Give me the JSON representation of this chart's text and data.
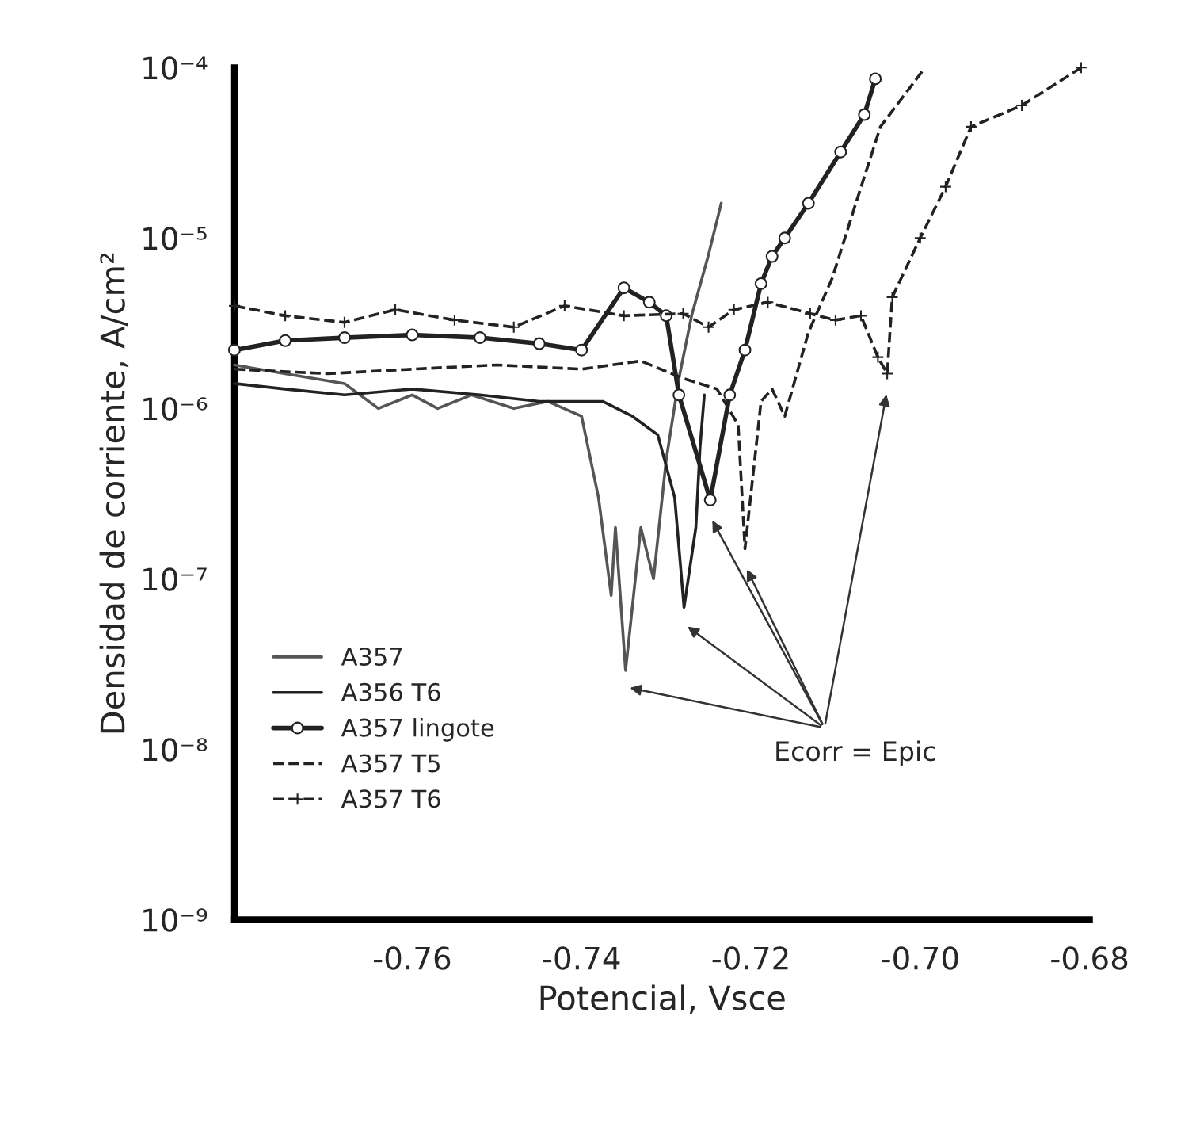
{
  "chart_data": {
    "type": "line",
    "xlabel": "Potencial, Vsce",
    "ylabel": "Densidad de corriente, A/cm²",
    "log": "y",
    "xlim": [
      -0.781,
      -0.68
    ],
    "xticks": [
      {
        "value": -0.76,
        "label": "-0.76"
      },
      {
        "value": -0.74,
        "label": "-0.74"
      },
      {
        "value": -0.72,
        "label": "-0.72"
      },
      {
        "value": -0.7,
        "label": "-0.70"
      },
      {
        "value": -0.68,
        "label": "-0.68"
      }
    ],
    "ylim": [
      1e-09,
      0.0001
    ],
    "yticks": [
      {
        "value": 1e-09,
        "label": "10⁻⁹"
      },
      {
        "value": 1e-08,
        "label": "10⁻⁸"
      },
      {
        "value": 1e-07,
        "label": "10⁻⁷"
      },
      {
        "value": 1e-06,
        "label": "10⁻⁶"
      },
      {
        "value": 1e-05,
        "label": "10⁻⁵"
      },
      {
        "value": 0.0001,
        "label": "10⁻⁴"
      }
    ],
    "grid": false,
    "legend": "bottom left",
    "annotations": [
      "Ecorr = Epic"
    ],
    "series": [
      {
        "name": "A357",
        "color": "#555555",
        "line_style": "solid",
        "marker": "none",
        "x": [
          -0.781,
          -0.775,
          -0.768,
          -0.764,
          -0.76,
          -0.757,
          -0.753,
          -0.748,
          -0.744,
          -0.74,
          -0.738,
          -0.7365,
          -0.736,
          -0.7348,
          -0.733,
          -0.7315,
          -0.73,
          -0.7285,
          -0.727,
          -0.725,
          -0.7235
        ],
        "values": [
          1.8e-06,
          1.6e-06,
          1.4e-06,
          1e-06,
          1.2e-06,
          1e-06,
          1.2e-06,
          1e-06,
          1.1e-06,
          9e-07,
          3e-07,
          8e-08,
          2e-07,
          2.9e-08,
          2e-07,
          1e-07,
          5e-07,
          1.5e-06,
          3.5e-06,
          8e-06,
          1.6e-05
        ]
      },
      {
        "name": "A356 T6",
        "color": "#222222",
        "line_style": "solid",
        "marker": "none",
        "x": [
          -0.781,
          -0.775,
          -0.768,
          -0.76,
          -0.752,
          -0.745,
          -0.7375,
          -0.734,
          -0.731,
          -0.729,
          -0.7279,
          -0.7265,
          -0.726,
          -0.7255
        ],
        "values": [
          1.4e-06,
          1.3e-06,
          1.2e-06,
          1.3e-06,
          1.2e-06,
          1.1e-06,
          1.1e-06,
          9e-07,
          7e-07,
          3e-07,
          6.8e-08,
          2e-07,
          6e-07,
          1.2e-06
        ]
      },
      {
        "name": "A357 lingote",
        "color": "#222222",
        "line_style": "solid",
        "marker": "circle",
        "x": [
          -0.781,
          -0.775,
          -0.768,
          -0.76,
          -0.752,
          -0.745,
          -0.74,
          -0.735,
          -0.732,
          -0.73,
          -0.7285,
          -0.7248,
          -0.7225,
          -0.7207,
          -0.7188,
          -0.7175,
          -0.716,
          -0.7132,
          -0.7094,
          -0.7066,
          -0.7053
        ],
        "values": [
          2.2e-06,
          2.5e-06,
          2.6e-06,
          2.7e-06,
          2.6e-06,
          2.4e-06,
          2.2e-06,
          5.1e-06,
          4.2e-06,
          3.5e-06,
          1.2e-06,
          2.9e-07,
          1.2e-06,
          2.2e-06,
          5.4e-06,
          7.8e-06,
          1e-05,
          1.6e-05,
          3.2e-05,
          5.3e-05,
          8.6e-05
        ]
      },
      {
        "name": "A357 T5",
        "color": "#222222",
        "line_style": "dashed",
        "marker": "none",
        "x": [
          -0.781,
          -0.77,
          -0.76,
          -0.75,
          -0.74,
          -0.733,
          -0.728,
          -0.724,
          -0.7215,
          -0.7207,
          -0.7188,
          -0.7175,
          -0.716,
          -0.7132,
          -0.7104,
          -0.7076,
          -0.7047,
          -0.6997
        ],
        "values": [
          1.7e-06,
          1.6e-06,
          1.7e-06,
          1.8e-06,
          1.7e-06,
          1.9e-06,
          1.5e-06,
          1.3e-06,
          8e-07,
          1.5e-07,
          1.1e-06,
          1.3e-06,
          9e-07,
          2.8e-06,
          5.8e-06,
          1.6e-05,
          4.5e-05,
          9.6e-05
        ]
      },
      {
        "name": "A357 T6",
        "color": "#222222",
        "line_style": "dashed",
        "marker": "cross",
        "x": [
          -0.781,
          -0.775,
          -0.768,
          -0.762,
          -0.755,
          -0.748,
          -0.742,
          -0.735,
          -0.728,
          -0.725,
          -0.722,
          -0.718,
          -0.713,
          -0.71,
          -0.707,
          -0.705,
          -0.7039,
          -0.7033,
          -0.7,
          -0.697,
          -0.694,
          -0.688,
          -0.681
        ],
        "values": [
          4e-06,
          3.5e-06,
          3.2e-06,
          3.8e-06,
          3.3e-06,
          3e-06,
          4e-06,
          3.5e-06,
          3.6e-06,
          3e-06,
          3.8e-06,
          4.2e-06,
          3.6e-06,
          3.3e-06,
          3.5e-06,
          2e-06,
          1.6e-06,
          4.5e-06,
          1e-05,
          2e-05,
          4.5e-05,
          6e-05,
          0.0001
        ]
      }
    ]
  }
}
